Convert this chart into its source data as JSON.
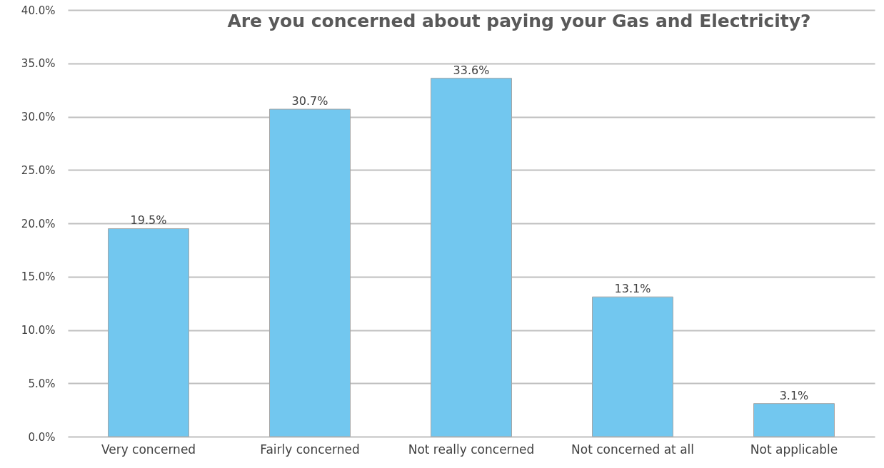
{
  "chart_data": {
    "type": "bar",
    "title": "Are you concerned about paying your Gas and Electricity?",
    "categories": [
      "Very concerned",
      "Fairly concerned",
      "Not really concerned",
      "Not concerned at all",
      "Not applicable"
    ],
    "values": [
      19.5,
      30.7,
      33.6,
      13.1,
      3.1
    ],
    "value_labels": [
      "19.5%",
      "30.7%",
      "33.6%",
      "13.1%",
      "3.1%"
    ],
    "color": "#72c7ef",
    "ylim": [
      0,
      40
    ],
    "yticks": [
      {
        "value": 0,
        "label": "0.0%"
      },
      {
        "value": 5,
        "label": "5.0%"
      },
      {
        "value": 10,
        "label": "10.0%"
      },
      {
        "value": 15,
        "label": "15.0%"
      },
      {
        "value": 20,
        "label": "20.0%"
      },
      {
        "value": 25,
        "label": "25.0%"
      },
      {
        "value": 30,
        "label": "30.0%"
      },
      {
        "value": 35,
        "label": "35.0%"
      },
      {
        "value": 40,
        "label": "40.0%"
      }
    ],
    "grid": true
  }
}
